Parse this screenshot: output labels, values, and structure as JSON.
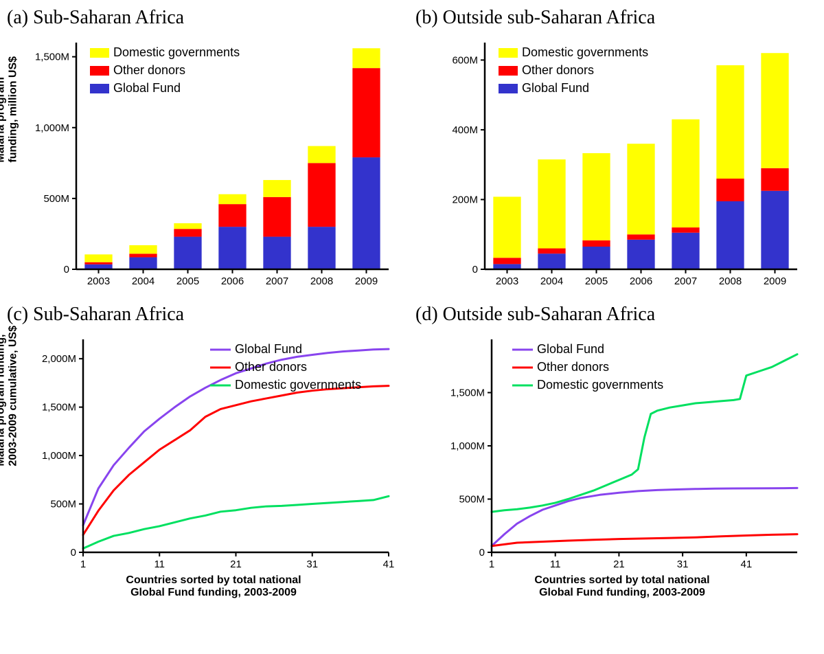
{
  "panel_a": {
    "letter": "(a)",
    "title": "Sub-Saharan Africa",
    "ylabel": "Malaria program\nfunding, million US$",
    "type": "stacked-bar",
    "categories": [
      "2003",
      "2004",
      "2005",
      "2006",
      "2007",
      "2008",
      "2009"
    ],
    "series": [
      {
        "name": "Global Fund",
        "color": "#3333cc",
        "values": [
          35,
          85,
          230,
          300,
          230,
          300,
          790
        ]
      },
      {
        "name": "Other donors",
        "color": "#ff0000",
        "values": [
          15,
          25,
          55,
          160,
          280,
          450,
          630
        ]
      },
      {
        "name": "Domestic governments",
        "color": "#ffff00",
        "values": [
          55,
          60,
          40,
          70,
          120,
          120,
          140
        ]
      }
    ],
    "legend_order": [
      "Domestic governments",
      "Other donors",
      "Global Fund"
    ],
    "ylim": [
      0,
      1600
    ],
    "yticks": [
      0,
      500,
      1000,
      1500
    ],
    "ytick_labels": [
      "0",
      "500M",
      "1,000M",
      "1,500M"
    ],
    "tick_fontsize": 15,
    "label_fontsize": 16,
    "axis_color": "#000000",
    "background": "#ffffff"
  },
  "panel_b": {
    "letter": "(b)",
    "title": "Outside sub-Saharan Africa",
    "ylabel": "",
    "type": "stacked-bar",
    "categories": [
      "2003",
      "2004",
      "2005",
      "2006",
      "2007",
      "2008",
      "2009"
    ],
    "series": [
      {
        "name": "Global Fund",
        "color": "#3333cc",
        "values": [
          15,
          45,
          65,
          85,
          105,
          195,
          225
        ]
      },
      {
        "name": "Other donors",
        "color": "#ff0000",
        "values": [
          18,
          15,
          18,
          15,
          15,
          65,
          65
        ]
      },
      {
        "name": "Domestic governments",
        "color": "#ffff00",
        "values": [
          175,
          255,
          250,
          260,
          310,
          325,
          330
        ]
      }
    ],
    "legend_order": [
      "Domestic governments",
      "Other donors",
      "Global Fund"
    ],
    "ylim": [
      0,
      650
    ],
    "yticks": [
      0,
      200,
      400,
      600
    ],
    "ytick_labels": [
      "0",
      "200M",
      "400M",
      "600M"
    ],
    "tick_fontsize": 15,
    "label_fontsize": 16,
    "axis_color": "#000000",
    "background": "#ffffff"
  },
  "panel_c": {
    "letter": "(c)",
    "title": "Sub-Saharan Africa",
    "ylabel": "Malaria program funding,\n2003-2009 cumulative, US$",
    "xlabel": "Countries sorted by total national\nGlobal Fund funding, 2003-2009",
    "type": "line",
    "xlim": [
      1,
      41
    ],
    "xticks": [
      1,
      11,
      21,
      31,
      41
    ],
    "xtick_labels": [
      "1",
      "11",
      "21",
      "31",
      "41"
    ],
    "ylim": [
      0,
      2200
    ],
    "yticks": [
      0,
      500,
      1000,
      1500,
      2000
    ],
    "ytick_labels": [
      "0",
      "500M",
      "1,000M",
      "1,500M",
      "2,000M"
    ],
    "legend_order": [
      "Global Fund",
      "Other donors",
      "Domestic governments"
    ],
    "series": [
      {
        "name": "Global Fund",
        "color": "#8844ee",
        "width": 3,
        "x": [
          1,
          3,
          5,
          7,
          9,
          11,
          13,
          15,
          17,
          19,
          21,
          23,
          25,
          27,
          29,
          31,
          33,
          35,
          37,
          39,
          41
        ],
        "y": [
          280,
          660,
          900,
          1080,
          1250,
          1380,
          1500,
          1610,
          1700,
          1780,
          1850,
          1900,
          1950,
          1990,
          2020,
          2040,
          2060,
          2075,
          2085,
          2095,
          2100
        ]
      },
      {
        "name": "Other donors",
        "color": "#ff0000",
        "width": 3,
        "x": [
          1,
          3,
          5,
          7,
          9,
          11,
          13,
          15,
          17,
          19,
          21,
          23,
          25,
          27,
          29,
          31,
          33,
          35,
          37,
          39,
          41
        ],
        "y": [
          180,
          430,
          640,
          800,
          930,
          1060,
          1160,
          1260,
          1400,
          1480,
          1520,
          1560,
          1590,
          1620,
          1650,
          1670,
          1685,
          1695,
          1705,
          1715,
          1720
        ]
      },
      {
        "name": "Domestic governments",
        "color": "#00e060",
        "width": 3,
        "x": [
          1,
          3,
          5,
          7,
          9,
          11,
          13,
          15,
          17,
          19,
          21,
          23,
          25,
          27,
          29,
          31,
          33,
          35,
          37,
          39,
          41
        ],
        "y": [
          40,
          110,
          170,
          200,
          240,
          270,
          310,
          350,
          380,
          420,
          435,
          460,
          475,
          480,
          490,
          500,
          510,
          520,
          530,
          540,
          580
        ]
      }
    ],
    "tick_fontsize": 15,
    "label_fontsize": 16
  },
  "panel_d": {
    "letter": "(d)",
    "title": "Outside sub-Saharan Africa",
    "ylabel": "",
    "xlabel": "Countries sorted by total national\nGlobal Fund funding, 2003-2009",
    "type": "line",
    "xlim": [
      1,
      49
    ],
    "xticks": [
      1,
      11,
      21,
      31,
      41
    ],
    "xtick_labels": [
      "1",
      "11",
      "21",
      "31",
      "41"
    ],
    "ylim": [
      0,
      2000
    ],
    "yticks": [
      0,
      500,
      1000,
      1500
    ],
    "ytick_labels": [
      "0",
      "500M",
      "1,000M",
      "1,500M"
    ],
    "legend_order": [
      "Global Fund",
      "Other donors",
      "Domestic governments"
    ],
    "series": [
      {
        "name": "Global Fund",
        "color": "#8844ee",
        "width": 3,
        "x": [
          1,
          3,
          5,
          7,
          9,
          11,
          13,
          15,
          18,
          21,
          24,
          27,
          30,
          33,
          36,
          39,
          42,
          45,
          48,
          49
        ],
        "y": [
          60,
          170,
          270,
          340,
          400,
          440,
          480,
          510,
          540,
          560,
          575,
          585,
          590,
          595,
          598,
          600,
          601,
          602,
          603,
          604
        ]
      },
      {
        "name": "Other donors",
        "color": "#ff0000",
        "width": 3,
        "x": [
          1,
          5,
          9,
          13,
          17,
          21,
          25,
          29,
          33,
          37,
          41,
          45,
          49
        ],
        "y": [
          60,
          90,
          100,
          110,
          118,
          125,
          130,
          135,
          140,
          150,
          158,
          165,
          170
        ]
      },
      {
        "name": "Domestic governments",
        "color": "#00e060",
        "width": 3,
        "x": [
          1,
          3,
          5,
          7,
          9,
          11,
          13,
          15,
          17,
          19,
          21,
          23,
          24,
          25,
          26,
          27,
          29,
          31,
          33,
          35,
          37,
          39,
          40,
          41,
          43,
          45,
          47,
          49
        ],
        "y": [
          380,
          395,
          405,
          420,
          440,
          465,
          500,
          540,
          580,
          630,
          680,
          730,
          780,
          1080,
          1300,
          1330,
          1360,
          1380,
          1400,
          1410,
          1420,
          1430,
          1440,
          1660,
          1700,
          1740,
          1800,
          1860
        ]
      }
    ],
    "tick_fontsize": 15,
    "label_fontsize": 16
  }
}
